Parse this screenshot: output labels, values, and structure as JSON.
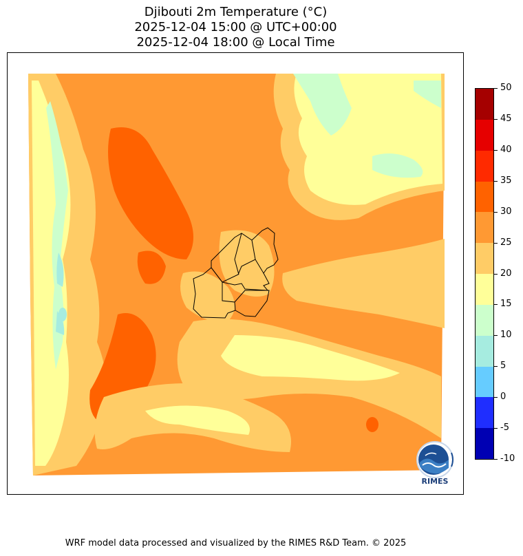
{
  "title": {
    "line1": "Djibouti 2m Temperature (°C)",
    "line2": "2025-12-04 15:00 @ UTC+00:00",
    "line3": "2025-12-04 18:00 @ Local Time"
  },
  "colorbar": {
    "ticks": [
      "50",
      "45",
      "40",
      "35",
      "30",
      "25",
      "20",
      "15",
      "10",
      "5",
      "0",
      "-5",
      "-10"
    ],
    "colors": [
      "#a50000",
      "#e60000",
      "#ff2a00",
      "#ff6200",
      "#ff9933",
      "#ffcc66",
      "#ffff99",
      "#ccffcc",
      "#a6ece0",
      "#66ccff",
      "#1f2eff",
      "#0000b3"
    ]
  },
  "logo": {
    "text": "RIMES"
  },
  "footer": "WRF model data processed and visualized by the RIMES R&D Team. © 2025"
}
